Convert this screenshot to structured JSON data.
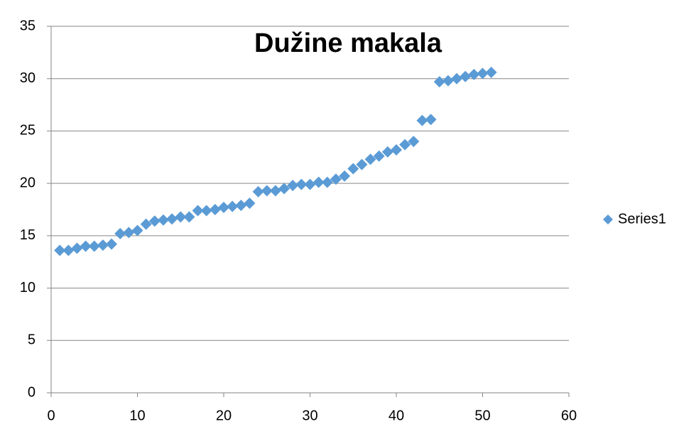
{
  "chart_data": {
    "type": "scatter",
    "title": "Dužine makala",
    "series": [
      {
        "name": "Series1",
        "color": "#5b9bd5",
        "x": [
          1,
          2,
          3,
          4,
          5,
          6,
          7,
          8,
          9,
          10,
          11,
          12,
          13,
          14,
          15,
          16,
          17,
          18,
          19,
          20,
          21,
          22,
          23,
          24,
          25,
          26,
          27,
          28,
          29,
          30,
          31,
          32,
          33,
          34,
          35,
          36,
          37,
          38,
          39,
          40,
          41,
          42,
          43,
          44,
          45,
          46,
          47,
          48,
          49,
          50,
          51
        ],
        "values": [
          13.6,
          13.6,
          13.8,
          14.0,
          14.0,
          14.1,
          14.2,
          15.2,
          15.3,
          15.5,
          16.1,
          16.4,
          16.5,
          16.6,
          16.8,
          16.8,
          17.4,
          17.4,
          17.5,
          17.7,
          17.8,
          17.9,
          18.1,
          19.2,
          19.3,
          19.3,
          19.5,
          19.8,
          19.9,
          19.9,
          20.1,
          20.1,
          20.4,
          20.7,
          21.4,
          21.8,
          22.3,
          22.6,
          23.0,
          23.2,
          23.7,
          24.0,
          26.0,
          26.1,
          29.7,
          29.8,
          30.0,
          30.2,
          30.4,
          30.5,
          30.6
        ]
      }
    ],
    "xlim": [
      0,
      60
    ],
    "xticks": [
      0,
      10,
      20,
      30,
      40,
      50,
      60
    ],
    "ylim": [
      0,
      35
    ],
    "yticks": [
      0,
      5,
      10,
      15,
      20,
      25,
      30,
      35
    ],
    "grid": true,
    "legend": "right"
  }
}
